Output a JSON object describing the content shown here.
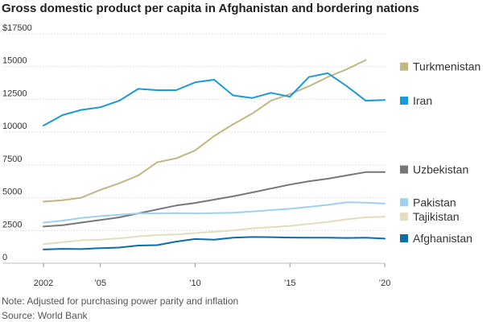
{
  "chart_data": {
    "type": "line",
    "title": "Gross domestic product per capita in Afghanistan and bordering nations",
    "note": "Note: Adjusted for purchasing power parity and inflation",
    "source": "Source: World Bank",
    "xlim": [
      2002,
      2020
    ],
    "ylim": [
      0,
      17500
    ],
    "x_ticks": [
      {
        "value": 2002,
        "label": "2002"
      },
      {
        "value": 2005,
        "label": "’05"
      },
      {
        "value": 2010,
        "label": "’10"
      },
      {
        "value": 2015,
        "label": "’15"
      },
      {
        "value": 2020,
        "label": "’20"
      }
    ],
    "y_ticks": [
      {
        "value": 0,
        "label": "0"
      },
      {
        "value": 2500,
        "label": "2500"
      },
      {
        "value": 5000,
        "label": "5000"
      },
      {
        "value": 7500,
        "label": "7500"
      },
      {
        "value": 10000,
        "label": "10000"
      },
      {
        "value": 12500,
        "label": "12500"
      },
      {
        "value": 15000,
        "label": "15000"
      },
      {
        "value": 17500,
        "label": "$17500"
      }
    ],
    "grid": true,
    "legend_position": "right",
    "series": [
      {
        "name": "Turkmenistan",
        "color": "#c2b682",
        "x": [
          2002,
          2003,
          2004,
          2005,
          2006,
          2007,
          2008,
          2009,
          2010,
          2011,
          2012,
          2013,
          2014,
          2015,
          2016,
          2017,
          2018,
          2019
        ],
        "values": [
          4700,
          4800,
          5000,
          5600,
          6100,
          6700,
          7700,
          8000,
          8600,
          9700,
          10600,
          11400,
          12400,
          12900,
          13500,
          14200,
          14800,
          15500
        ]
      },
      {
        "name": "Iran",
        "color": "#1a9bd7",
        "x": [
          2002,
          2003,
          2004,
          2005,
          2006,
          2007,
          2008,
          2009,
          2010,
          2011,
          2012,
          2013,
          2014,
          2015,
          2016,
          2017,
          2018,
          2019,
          2020
        ],
        "values": [
          10500,
          11300,
          11700,
          11900,
          12400,
          13300,
          13200,
          13200,
          13800,
          14000,
          12800,
          12600,
          13000,
          12700,
          14200,
          14500,
          13500,
          12400,
          12450
        ]
      },
      {
        "name": "Uzbekistan",
        "color": "#777777",
        "x": [
          2002,
          2003,
          2004,
          2005,
          2006,
          2007,
          2008,
          2009,
          2010,
          2011,
          2012,
          2013,
          2014,
          2015,
          2016,
          2017,
          2018,
          2019,
          2020
        ],
        "values": [
          2800,
          2900,
          3100,
          3300,
          3500,
          3800,
          4100,
          4400,
          4600,
          4850,
          5100,
          5400,
          5700,
          6000,
          6250,
          6450,
          6700,
          6950,
          6950
        ]
      },
      {
        "name": "Pakistan",
        "color": "#9ed0f0",
        "x": [
          2002,
          2003,
          2004,
          2005,
          2006,
          2007,
          2008,
          2009,
          2010,
          2011,
          2012,
          2013,
          2014,
          2015,
          2016,
          2017,
          2018,
          2019,
          2020
        ],
        "values": [
          3100,
          3250,
          3450,
          3600,
          3700,
          3800,
          3800,
          3820,
          3800,
          3820,
          3850,
          3950,
          4050,
          4150,
          4300,
          4450,
          4650,
          4620,
          4550
        ]
      },
      {
        "name": "Tajikistan",
        "color": "#e3dcbf",
        "x": [
          2002,
          2003,
          2004,
          2005,
          2006,
          2007,
          2008,
          2009,
          2010,
          2011,
          2012,
          2013,
          2014,
          2015,
          2016,
          2017,
          2018,
          2019,
          2020
        ],
        "values": [
          1450,
          1600,
          1750,
          1800,
          1900,
          2050,
          2150,
          2200,
          2300,
          2400,
          2500,
          2650,
          2750,
          2850,
          3000,
          3150,
          3350,
          3500,
          3550
        ]
      },
      {
        "name": "Afghanistan",
        "color": "#0a6ea8",
        "x": [
          2002,
          2003,
          2004,
          2005,
          2006,
          2007,
          2008,
          2009,
          2010,
          2011,
          2012,
          2013,
          2014,
          2015,
          2016,
          2017,
          2018,
          2019,
          2020
        ],
        "values": [
          1050,
          1100,
          1080,
          1150,
          1200,
          1350,
          1380,
          1650,
          1850,
          1800,
          1950,
          2000,
          1990,
          1960,
          1950,
          1950,
          1930,
          1950,
          1880
        ]
      }
    ],
    "legend": [
      {
        "series": "Turkmenistan",
        "value": 15000
      },
      {
        "series": "Iran",
        "value": 12400
      },
      {
        "series": "Uzbekistan",
        "value": 7150
      },
      {
        "series": "Pakistan",
        "value": 4650
      },
      {
        "series": "Tajikistan",
        "value": 3550
      },
      {
        "series": "Afghanistan",
        "value": 1900
      }
    ]
  }
}
